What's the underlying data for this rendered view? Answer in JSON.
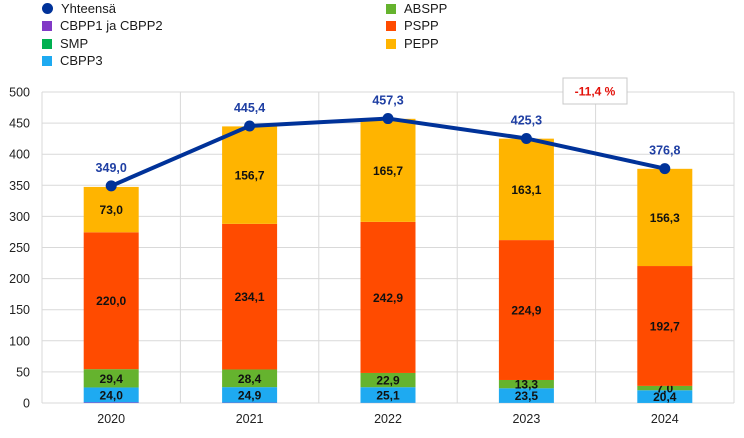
{
  "legend": {
    "items": [
      {
        "label": "Yhteensä",
        "color": "#003299",
        "shape": "dot"
      },
      {
        "label": "CBPP1 ja CBPP2",
        "color": "#8139c6",
        "shape": "square"
      },
      {
        "label": "SMP",
        "color": "#00b050",
        "shape": "square"
      },
      {
        "label": "CBPP3",
        "color": "#1eaaf1",
        "shape": "square"
      },
      {
        "label": "ABSPP",
        "color": "#65b32e",
        "shape": "square"
      },
      {
        "label": "PSPP",
        "color": "#ff4b00",
        "shape": "square"
      },
      {
        "label": "PEPP",
        "color": "#ffb400",
        "shape": "square"
      }
    ]
  },
  "callout": {
    "text": "-11,4 %"
  },
  "chart_data": {
    "type": "bar",
    "stacked": true,
    "categories": [
      "2020",
      "2021",
      "2022",
      "2023",
      "2024"
    ],
    "ylim": [
      0,
      500
    ],
    "yticks": [
      0,
      50,
      100,
      150,
      200,
      250,
      300,
      350,
      400,
      450,
      500
    ],
    "grid": true,
    "legend_position": "top",
    "series": [
      {
        "name": "CBPP1 ja CBPP2",
        "color": "#8139c6",
        "values": [
          1.0,
          0.6,
          0.3,
          0.2,
          0.1
        ]
      },
      {
        "name": "CBPP3",
        "color": "#1eaaf1",
        "values": [
          24.0,
          24.9,
          25.1,
          23.5,
          20.4
        ],
        "labels": [
          "24,0",
          "24,9",
          "25,1",
          "23,5",
          "20,4"
        ]
      },
      {
        "name": "ABSPP",
        "color": "#65b32e",
        "values": [
          29.4,
          28.4,
          22.9,
          13.3,
          7.0
        ],
        "labels": [
          "29,4",
          "28,4",
          "22,9",
          "13,3",
          "7,0"
        ]
      },
      {
        "name": "PSPP",
        "color": "#ff4b00",
        "values": [
          220.0,
          234.1,
          242.9,
          224.9,
          192.7
        ],
        "labels": [
          "220,0",
          "234,1",
          "242,9",
          "224,9",
          "192,7"
        ]
      },
      {
        "name": "PEPP",
        "color": "#ffb400",
        "values": [
          73.0,
          156.7,
          165.7,
          163.1,
          156.3
        ],
        "labels": [
          "73,0",
          "156,7",
          "165,7",
          "163,1",
          "156,3"
        ]
      }
    ],
    "line": {
      "name": "Yhteensä",
      "color": "#003299",
      "values": [
        349.0,
        445.4,
        457.3,
        425.3,
        376.8
      ],
      "labels": [
        "349,0",
        "445,4",
        "457,3",
        "425,3",
        "376,8"
      ]
    }
  }
}
